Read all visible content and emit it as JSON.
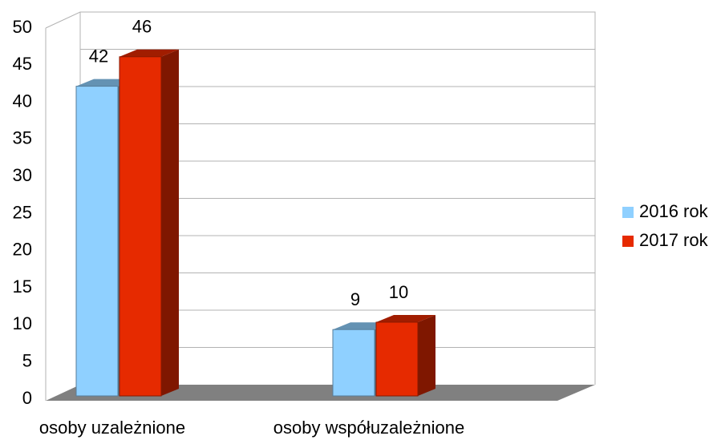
{
  "chart_data": {
    "type": "bar3d",
    "categories": [
      "osoby uzależnione",
      "osoby współuzależnione"
    ],
    "series": [
      {
        "name": "2016 rok",
        "color": "#8fd0ff",
        "values": [
          42,
          9
        ]
      },
      {
        "name": "2017 rok",
        "color": "#e62a00",
        "values": [
          46,
          10
        ]
      }
    ],
    "ylim": [
      0,
      50
    ],
    "yticks": [
      0,
      5,
      10,
      15,
      20,
      25,
      30,
      35,
      40,
      45,
      50
    ],
    "grid": true,
    "legend": "right"
  }
}
